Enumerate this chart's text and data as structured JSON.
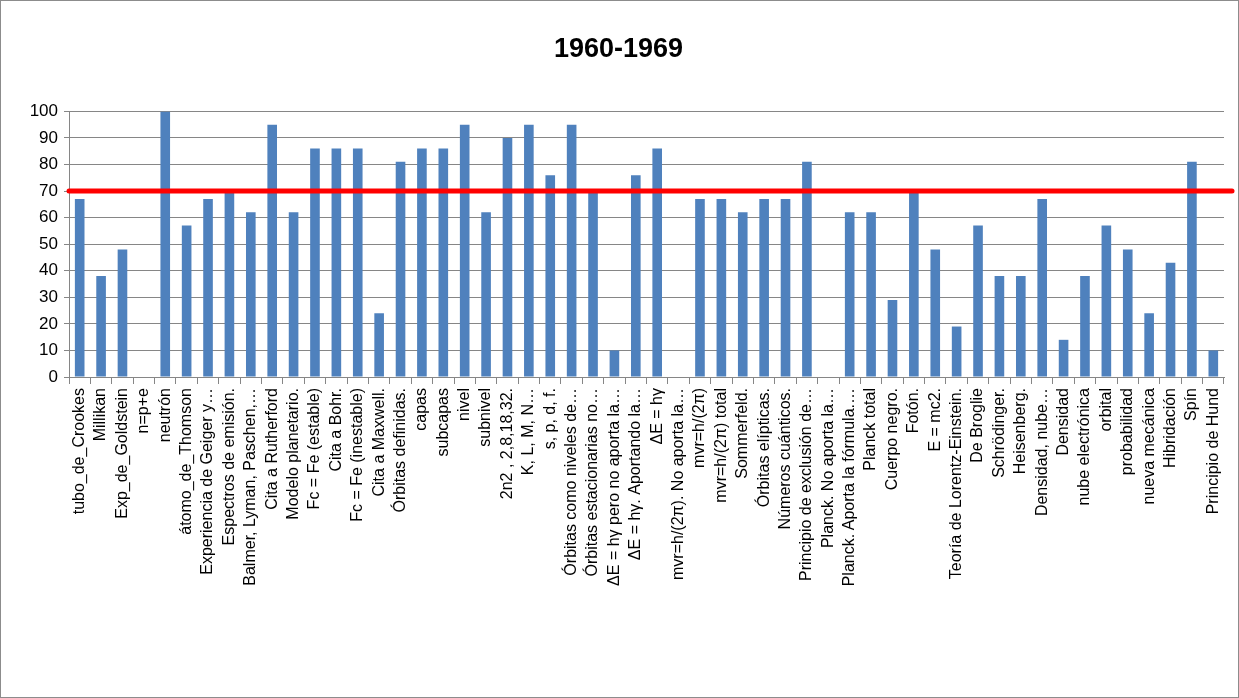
{
  "chart_data": {
    "type": "bar",
    "title": "1960-1969",
    "categories": [
      "tubo_de_Crookes",
      "Millikan",
      "Exp_de_Goldstein",
      "n=p+e",
      "neutrón",
      "átomo_de_Thomson",
      "Experiencia de Geiger y…",
      "Espectros de emisión.",
      "Balmer, Lyman, Paschen,…",
      "Cita a Rutherford",
      "Modelo planetario.",
      "Fc = Fe (estable)",
      "Cita a Bohr.",
      "Fc = Fe (inestable)",
      "Cita a Maxwell.",
      "Órbitas definidas.",
      "capas",
      "subcapas",
      "nivel",
      "subnivel",
      "2n2 , 2,8,18,32.",
      "K, L, M, N…",
      "s, p, d, f.",
      "Órbitas como niveles de…",
      "Órbitas estacionarias no…",
      "ΔE = hγ pero no aporta la…",
      "ΔE = hγ. Aportando la…",
      "ΔE = hγ",
      "mvr=h/(2π). No aporta la…",
      "mvr=h/(2π)",
      "mvr=h/(2π) total",
      "Sommerfeld.",
      "Órbitas elípticas.",
      "Números cuánticos.",
      "Principio de exclusión de…",
      "Planck. No aporta la…",
      "Planck. Aporta la fórmula.…",
      "Planck total",
      "Cuerpo negro.",
      "Fotón.",
      "E = mc2.",
      "Teoría de Lorentz-Einstein.",
      "De Broglie",
      "Schrödinger.",
      "Heisenberg.",
      "Densidad, nube…",
      "Densidad",
      "nube electrónica",
      "orbital",
      "probabilidad",
      "nueva mecánica",
      "Hibridación",
      "Spín",
      "Principio de Hund"
    ],
    "values": [
      67,
      38,
      48,
      0,
      100,
      57,
      67,
      70,
      62,
      95,
      62,
      86,
      86,
      86,
      24,
      81,
      86,
      86,
      95,
      62,
      90,
      95,
      76,
      95,
      70,
      10,
      76,
      86,
      0,
      67,
      67,
      62,
      67,
      67,
      81,
      0,
      62,
      62,
      29,
      70,
      48,
      19,
      57,
      38,
      38,
      67,
      14,
      38,
      57,
      48,
      24,
      43,
      81,
      10
    ],
    "color": "#4f81bd",
    "ylim": [
      0,
      100
    ],
    "yticks": [
      0,
      10,
      20,
      30,
      40,
      50,
      60,
      70,
      80,
      90,
      100
    ],
    "grid": "y",
    "ref_lines": [
      {
        "axis": "y",
        "value": 70,
        "color": "#ff0000"
      }
    ]
  }
}
